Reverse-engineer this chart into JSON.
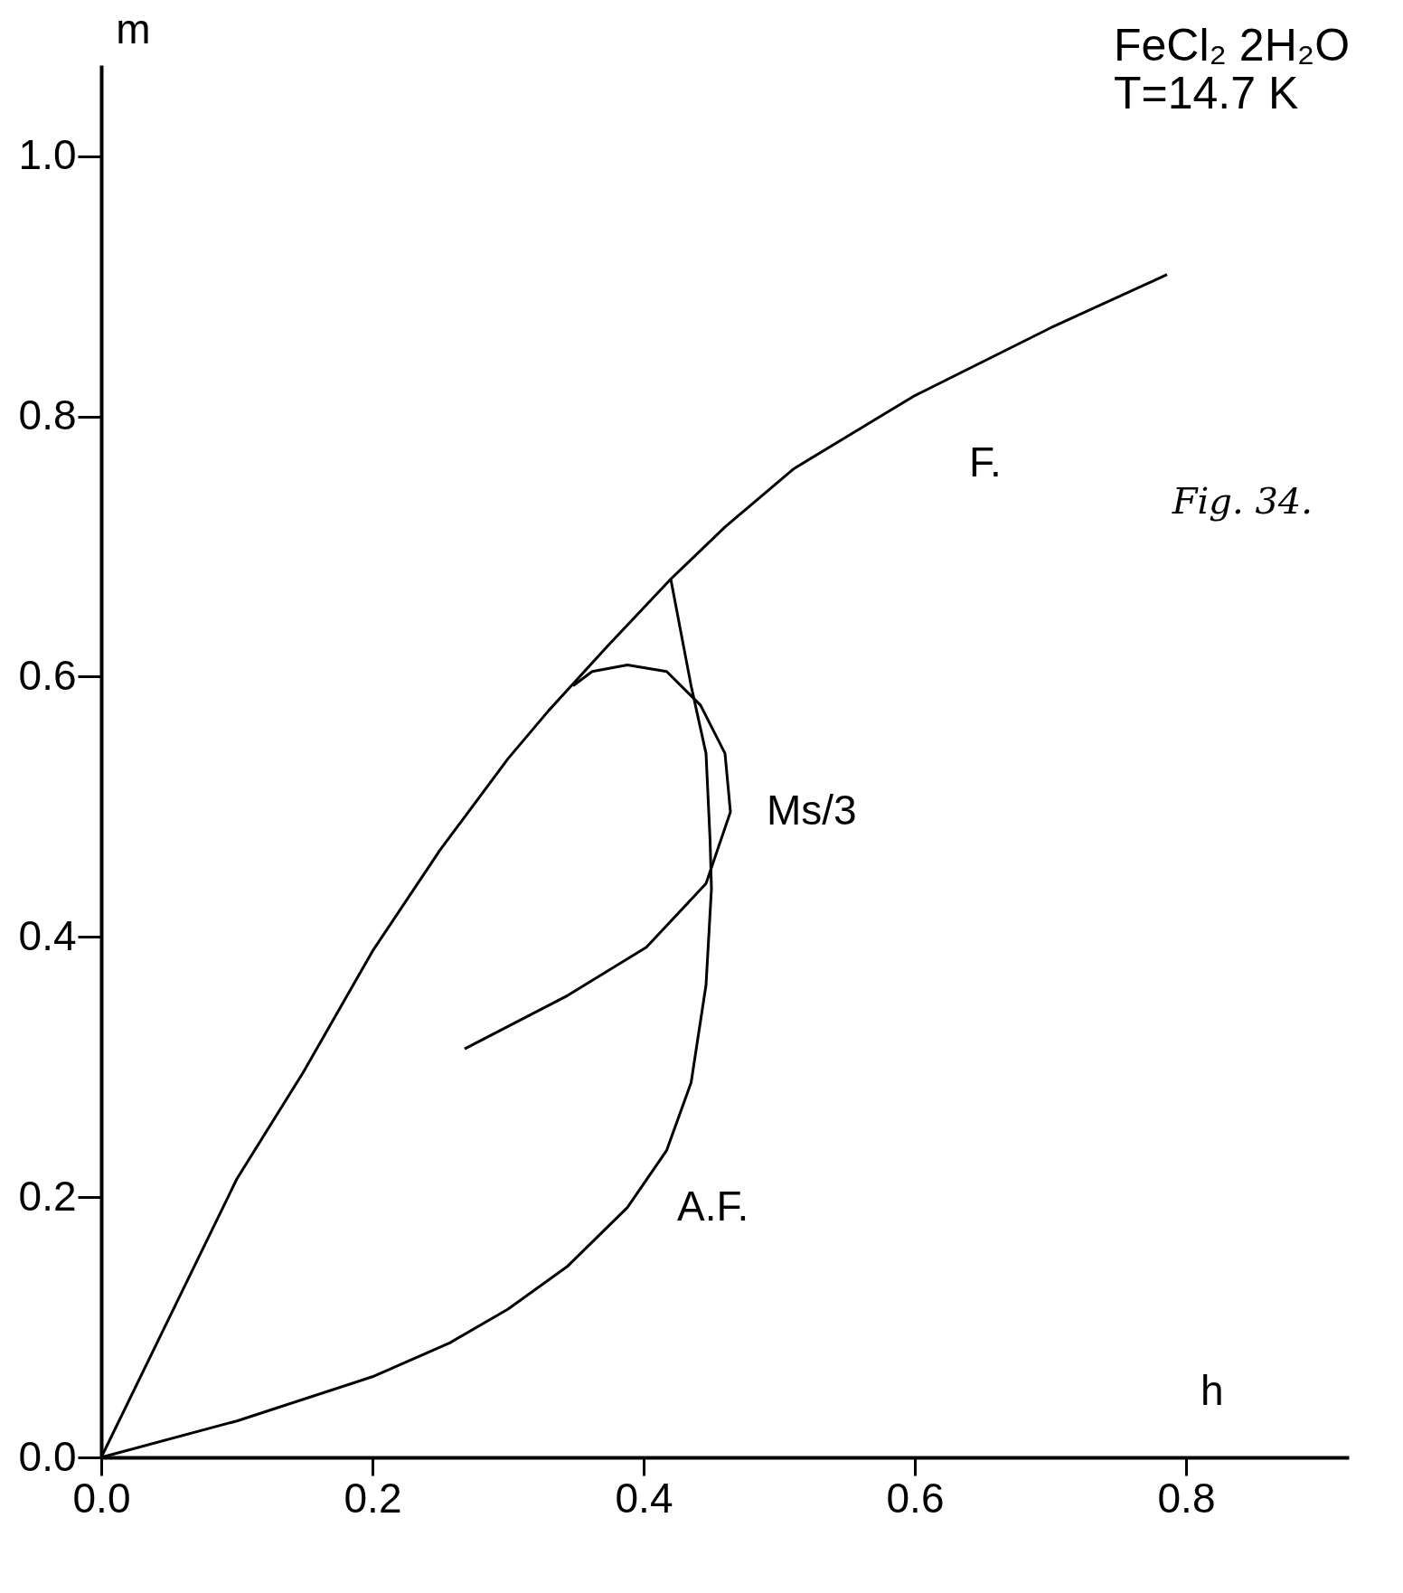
{
  "chart_data": {
    "type": "line",
    "title": "FeCl₂ 2H₂O",
    "subtitle": "T=14.7 K",
    "xlabel": "h",
    "ylabel": "m",
    "annotations": [
      "Fig. 34."
    ],
    "xlim": [
      0,
      0.92
    ],
    "ylim": [
      0,
      1.07
    ],
    "xticks": [
      {
        "value": 0,
        "label": "0.0"
      },
      0.2,
      0.4,
      0.6,
      0.8
    ],
    "yticks": [
      {
        "value": 0,
        "label": "0.0"
      },
      0.2,
      0.4,
      0.6,
      0.8,
      {
        "value": 1.0,
        "label": "1.0"
      }
    ],
    "grid": false,
    "marker": "none",
    "line_style": "solid",
    "series": [
      {
        "name": "F.",
        "color": "#000000",
        "x": [
          0,
          0.1,
          0.149,
          0.2,
          0.25,
          0.3,
          0.33,
          0.373,
          0.42,
          0.46,
          0.511,
          0.6,
          0.7,
          0.786
        ],
        "values": [
          0,
          0.214,
          0.296,
          0.389,
          0.467,
          0.537,
          0.574,
          0.623,
          0.675,
          0.715,
          0.76,
          0.816,
          0.868,
          0.909
        ]
      },
      {
        "name": "A.F.",
        "color": "#000000",
        "x": [
          0,
          0.1,
          0.2,
          0.257,
          0.3,
          0.344,
          0.388,
          0.417,
          0.435,
          0.446,
          0.45,
          0.449,
          0.446,
          0.435,
          0.42
        ],
        "values": [
          0,
          0.028,
          0.062,
          0.088,
          0.114,
          0.147,
          0.192,
          0.236,
          0.288,
          0.363,
          0.437,
          0.474,
          0.541,
          0.593,
          0.675
        ]
      },
      {
        "name": "Ms/3",
        "color": "#000000",
        "x": [
          0.268,
          0.344,
          0.402,
          0.446,
          0.464,
          0.46,
          0.442,
          0.417,
          0.388,
          0.362,
          0.348
        ],
        "values": [
          0.314,
          0.355,
          0.392,
          0.441,
          0.496,
          0.541,
          0.578,
          0.604,
          0.609,
          0.604,
          0.593
        ]
      }
    ]
  }
}
